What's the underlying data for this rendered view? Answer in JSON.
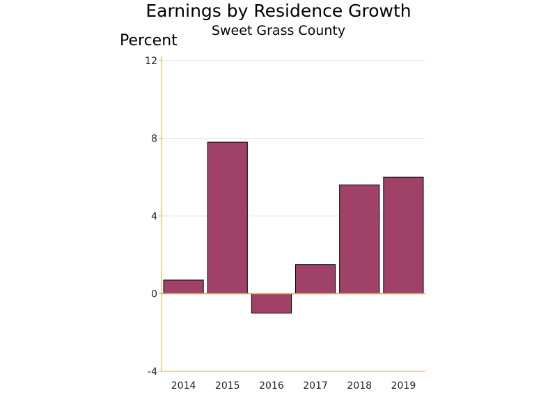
{
  "chart_data": {
    "type": "bar",
    "title": "Earnings by Residence Growth",
    "subtitle": "Sweet Grass County",
    "ylabel": "Percent",
    "xlabel": "",
    "categories": [
      "2014",
      "2015",
      "2016",
      "2017",
      "2018",
      "2019"
    ],
    "values": [
      0.7,
      7.8,
      -1.0,
      1.5,
      5.6,
      6.0
    ],
    "ylim": [
      -4,
      12
    ],
    "yticks": [
      -4,
      0,
      4,
      8,
      12
    ],
    "grid": true,
    "legend": "none",
    "bar_color": "#a04268",
    "axis_color": "#f5a623"
  }
}
